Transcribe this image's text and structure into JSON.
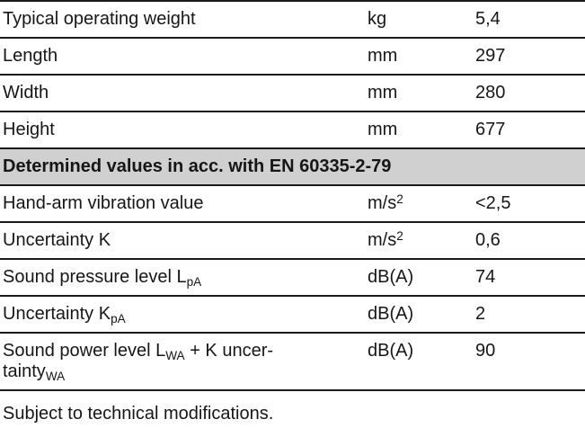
{
  "table": {
    "section_bg": "#d0d0d0",
    "rows": [
      {
        "type": "data",
        "label": [
          {
            "text": "Typical operating weight"
          }
        ],
        "unit": [
          {
            "text": "kg"
          }
        ],
        "value": "5,4"
      },
      {
        "type": "data",
        "label": [
          {
            "text": "Length"
          }
        ],
        "unit": [
          {
            "text": "mm"
          }
        ],
        "value": "297"
      },
      {
        "type": "data",
        "label": [
          {
            "text": "Width"
          }
        ],
        "unit": [
          {
            "text": "mm"
          }
        ],
        "value": "280"
      },
      {
        "type": "data",
        "label": [
          {
            "text": "Height"
          }
        ],
        "unit": [
          {
            "text": "mm"
          }
        ],
        "value": "677"
      },
      {
        "type": "section",
        "label": [
          {
            "text": "Determined values in acc. with EN 60335-2-79"
          }
        ]
      },
      {
        "type": "data",
        "label": [
          {
            "text": "Hand-arm vibration value"
          }
        ],
        "unit": [
          {
            "text": "m/s"
          },
          {
            "text": "2",
            "style": "sup"
          }
        ],
        "value": "<2,5"
      },
      {
        "type": "data",
        "label": [
          {
            "text": "Uncertainty K"
          }
        ],
        "unit": [
          {
            "text": "m/s"
          },
          {
            "text": "2",
            "style": "sup"
          }
        ],
        "value": "0,6"
      },
      {
        "type": "data",
        "label": [
          {
            "text": "Sound pressure level L"
          },
          {
            "text": "pA",
            "style": "sub"
          }
        ],
        "unit": [
          {
            "text": "dB(A)"
          }
        ],
        "value": "74"
      },
      {
        "type": "data",
        "label": [
          {
            "text": "Uncertainty K"
          },
          {
            "text": "pA",
            "style": "sub"
          }
        ],
        "unit": [
          {
            "text": "dB(A)"
          }
        ],
        "value": "2"
      },
      {
        "type": "data",
        "label": [
          {
            "text": "Sound power level L"
          },
          {
            "text": "WA",
            "style": "sub"
          },
          {
            "text": " + K uncer-"
          },
          {
            "break": true
          },
          {
            "text": "tainty"
          },
          {
            "text": "WA",
            "style": "sub"
          }
        ],
        "unit": [
          {
            "text": "dB(A)"
          }
        ],
        "value": "90"
      }
    ],
    "footer": "Subject to technical modifications."
  }
}
